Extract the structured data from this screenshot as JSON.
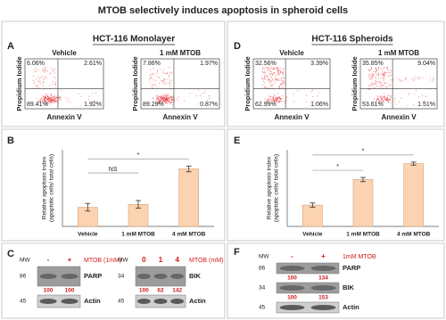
{
  "title": "MTOB selectively induces apoptosis in spheroid cells",
  "flow": [
    {
      "letter": "A",
      "heading": "HCT-116 Monolayer",
      "y_label": "Propidium Iodide",
      "x_label": "Annexin V",
      "plots": [
        {
          "label": "Vehicle",
          "ul": "6.06%",
          "ur": "2.61%",
          "ll": "89.41%",
          "lr": "1.92%"
        },
        {
          "label": "1 mM MTOB",
          "ul": "7.86%",
          "ur": "1.97%",
          "ll": "89.29%",
          "lr": "0.87%"
        }
      ]
    },
    {
      "letter": "D",
      "heading": "HCT-116 Spheroids",
      "y_label": "Propidium Iodide",
      "x_label": "Annexin V",
      "plots": [
        {
          "label": "Vehicle",
          "ul": "32.56%",
          "ur": "3.39%",
          "ll": "62.99%",
          "lr": "1.06%"
        },
        {
          "label": "1 mM MTOB",
          "ul": "35.85%",
          "ur": "9.04%",
          "ll": "53.61%",
          "lr": "1.51%"
        }
      ]
    }
  ],
  "chart_data": [
    {
      "type": "bar",
      "letter": "B",
      "y_label": "Relative apoptosis index",
      "y_label_2": "(apoptotic cells/ total cells)",
      "categories": [
        "Vehicle",
        "1 mM MTOB",
        "4 mM MTOB"
      ],
      "values": [
        1.0,
        1.15,
        3.0
      ],
      "errors": [
        0.2,
        0.2,
        0.15
      ],
      "ylim": [
        0,
        4
      ],
      "color": "#fbd3b0",
      "significance": [
        {
          "label": "NS",
          "pair": [
            0,
            1
          ]
        },
        {
          "label": "*",
          "pair": [
            0,
            2
          ]
        }
      ]
    },
    {
      "type": "bar",
      "letter": "E",
      "y_label": "Relative apoptosis index",
      "y_label_2": "(apoptotic cells/ total cells)",
      "categories": [
        "Vehicle",
        "1 mM MTOB",
        "4 mM MTOB"
      ],
      "values": [
        1.0,
        2.2,
        2.95
      ],
      "errors": [
        0.1,
        0.1,
        0.07
      ],
      "ylim": [
        0,
        3.6
      ],
      "color": "#fbd3b0",
      "significance": [
        {
          "label": "*",
          "pair": [
            0,
            1
          ]
        },
        {
          "label": "*",
          "pair": [
            0,
            2
          ]
        }
      ]
    }
  ],
  "blots": [
    {
      "letter": "C",
      "mw": "MW",
      "lanes": [
        "-",
        "+"
      ],
      "treatment": "MTOB (1mM)",
      "rows": [
        {
          "mw": "86",
          "name": "PARP",
          "quant": [
            "100",
            "100"
          ]
        },
        {
          "mw": "45",
          "name": "Actin"
        }
      ]
    },
    {
      "mw": "MW",
      "lanes": [
        "0",
        "1",
        "4"
      ],
      "treatment": "MTOB (mM)",
      "rows": [
        {
          "mw": "34",
          "name": "BIK",
          "quant": [
            "100",
            "62",
            "142"
          ]
        },
        {
          "mw": "45",
          "name": "Actin"
        }
      ]
    },
    {
      "letter": "F",
      "mw": "MW",
      "lanes": [
        "-",
        "+"
      ],
      "treatment": "1mM MTOB",
      "rows": [
        {
          "mw": "86",
          "name": "PARP",
          "quant": [
            "100",
            "134"
          ]
        },
        {
          "mw": "34",
          "name": "BIK",
          "quant": [
            "100",
            "153"
          ]
        },
        {
          "mw": "45",
          "name": "Actin"
        }
      ]
    }
  ]
}
